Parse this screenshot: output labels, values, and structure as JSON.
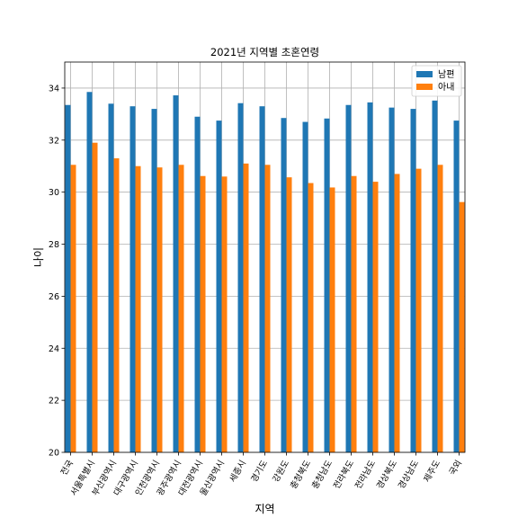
{
  "chart_data": {
    "type": "bar",
    "title": "2021년 지역별 초혼연령",
    "xlabel": "지역",
    "ylabel": "나이",
    "ylim": [
      20,
      35
    ],
    "yticks": [
      20,
      22,
      24,
      26,
      28,
      30,
      32,
      34
    ],
    "grid": true,
    "legend_position": "top-right",
    "categories": [
      "전국",
      "서울특별시",
      "부산광역시",
      "대구광역시",
      "인천광역시",
      "광주광역시",
      "대전광역시",
      "울산광역시",
      "세종시",
      "경기도",
      "강원도",
      "충청북도",
      "충청남도",
      "전라북도",
      "전라남도",
      "경상북도",
      "경상남도",
      "제주도",
      "국외"
    ],
    "series": [
      {
        "name": "남편",
        "color": "#1f77b4",
        "values": [
          33.35,
          33.85,
          33.4,
          33.3,
          33.2,
          33.72,
          32.9,
          32.75,
          33.42,
          33.3,
          32.85,
          32.7,
          32.83,
          33.35,
          33.45,
          33.25,
          33.2,
          33.52,
          32.75
        ]
      },
      {
        "name": "아내",
        "color": "#ff7f0e",
        "values": [
          31.05,
          31.9,
          31.3,
          31.0,
          30.95,
          31.05,
          30.62,
          30.6,
          31.1,
          31.05,
          30.57,
          30.35,
          30.18,
          30.62,
          30.4,
          30.7,
          30.9,
          31.05,
          29.62
        ]
      }
    ]
  }
}
